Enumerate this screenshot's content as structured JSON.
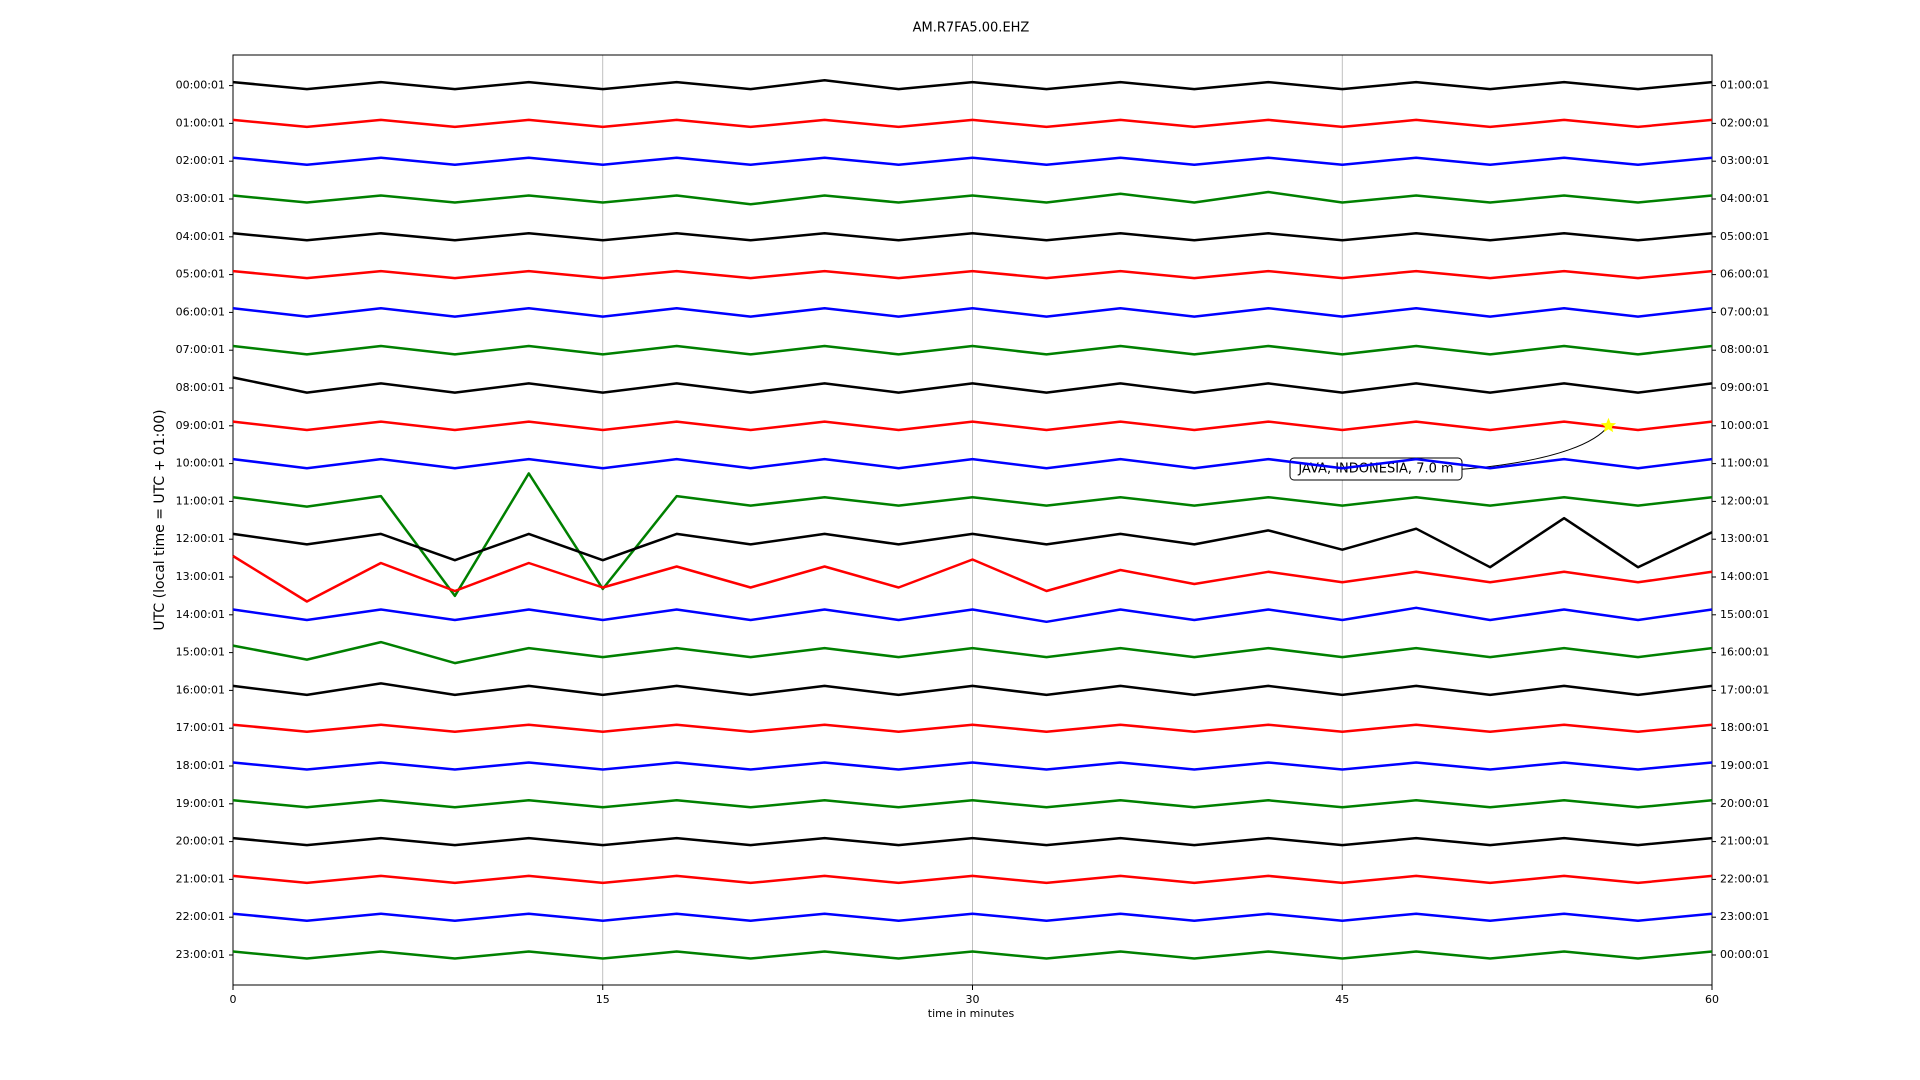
{
  "chart_data": {
    "type": "helicorder",
    "title": "AM.R7FA5.00.EHZ",
    "x_label": "time in minutes",
    "y_label": "UTC (local time = UTC + 01:00)",
    "xlim": [
      0,
      60
    ],
    "xticks": [
      0,
      15,
      30,
      45,
      60
    ],
    "grid": true,
    "x": [
      0,
      3,
      6,
      9,
      12,
      15,
      18,
      21,
      24,
      27,
      30,
      33,
      36,
      39,
      42,
      45,
      48,
      51,
      54,
      57,
      60
    ],
    "series": [
      {
        "name": "00:00:01",
        "right_label": "01:00:01",
        "color": "#000000",
        "values": [
          1,
          1,
          1,
          1,
          1,
          1,
          1,
          1,
          1.5,
          1,
          1,
          1,
          1,
          1,
          1,
          1,
          1,
          1,
          1,
          1,
          1
        ]
      },
      {
        "name": "01:00:01",
        "right_label": "02:00:01",
        "color": "#ff0000",
        "values": [
          1,
          1,
          1,
          1,
          1,
          1,
          1,
          1,
          1,
          1,
          1,
          1,
          1,
          1,
          1,
          1,
          1,
          1,
          1,
          1,
          1
        ]
      },
      {
        "name": "02:00:01",
        "right_label": "03:00:01",
        "color": "#0000ff",
        "values": [
          1,
          1,
          1,
          1,
          1,
          1,
          1,
          1,
          1,
          1,
          1,
          1,
          1,
          1,
          1,
          1,
          1,
          1,
          1,
          1,
          1
        ]
      },
      {
        "name": "03:00:01",
        "right_label": "04:00:01",
        "color": "#008000",
        "values": [
          1,
          1,
          1,
          1,
          1,
          1,
          1,
          1.5,
          1,
          1,
          1,
          1,
          1.5,
          1,
          2,
          1,
          1,
          1,
          1,
          1,
          1
        ]
      },
      {
        "name": "04:00:01",
        "right_label": "05:00:01",
        "color": "#000000",
        "values": [
          1,
          1,
          1,
          1,
          1,
          1,
          1,
          1,
          1,
          1,
          1,
          1,
          1,
          1,
          1,
          1,
          1,
          1,
          1,
          1,
          1
        ]
      },
      {
        "name": "05:00:01",
        "right_label": "06:00:01",
        "color": "#ff0000",
        "values": [
          1,
          1,
          1,
          1,
          1,
          1,
          1,
          1,
          1,
          1,
          1,
          1,
          1,
          1,
          1,
          1,
          1,
          1,
          1,
          1,
          1
        ]
      },
      {
        "name": "06:00:01",
        "right_label": "07:00:01",
        "color": "#0000ff",
        "values": [
          1.2,
          1.2,
          1.2,
          1.2,
          1.2,
          1.2,
          1.2,
          1.2,
          1.2,
          1.2,
          1.2,
          1.2,
          1.2,
          1.2,
          1.2,
          1.2,
          1.2,
          1.2,
          1.2,
          1.2,
          1.2
        ]
      },
      {
        "name": "07:00:01",
        "right_label": "08:00:01",
        "color": "#008000",
        "values": [
          1.2,
          1.2,
          1.2,
          1.2,
          1.2,
          1.2,
          1.2,
          1.2,
          1.2,
          1.2,
          1.2,
          1.2,
          1.2,
          1.2,
          1.2,
          1.2,
          1.2,
          1.2,
          1.2,
          1.2,
          1.2
        ]
      },
      {
        "name": "08:00:01",
        "right_label": "09:00:01",
        "color": "#000000",
        "values": [
          3,
          1.3,
          1.3,
          1.3,
          1.3,
          1.3,
          1.3,
          1.3,
          1.3,
          1.3,
          1.3,
          1.3,
          1.3,
          1.3,
          1.3,
          1.3,
          1.3,
          1.3,
          1.3,
          1.3,
          1.3
        ]
      },
      {
        "name": "09:00:01",
        "right_label": "10:00:01",
        "color": "#ff0000",
        "values": [
          1.2,
          1.2,
          1.2,
          1.2,
          1.2,
          1.2,
          1.2,
          1.2,
          1.2,
          1.2,
          1.2,
          1.2,
          1.2,
          1.2,
          1.2,
          1.2,
          1.2,
          1.2,
          1.2,
          1.2,
          1.2
        ],
        "event": {
          "label": "JAVA, INDONESIA, 7.0 m",
          "minute": 55.8
        }
      },
      {
        "name": "10:00:01",
        "right_label": "11:00:01",
        "color": "#0000ff",
        "values": [
          1.3,
          1.3,
          1.3,
          1.3,
          1.3,
          1.3,
          1.3,
          1.3,
          1.3,
          1.3,
          1.3,
          1.3,
          1.3,
          1.3,
          1.3,
          1.3,
          1.3,
          1.3,
          1.3,
          1.3,
          1.3
        ]
      },
      {
        "name": "11:00:01",
        "right_label": "12:00:01",
        "color": "#008000",
        "values": [
          1.2,
          1.5,
          1.5,
          27,
          8,
          25,
          1.5,
          1.2,
          1.2,
          1.2,
          1.2,
          1.2,
          1.2,
          1.2,
          1.2,
          1.2,
          1.2,
          1.2,
          1.2,
          1.2,
          1.2
        ]
      },
      {
        "name": "12:00:01",
        "right_label": "13:00:01",
        "color": "#000000",
        "values": [
          1.5,
          1.5,
          1.5,
          6,
          1.5,
          6,
          1.5,
          1.5,
          1.5,
          1.5,
          1.5,
          1.5,
          1.5,
          1.5,
          2.5,
          3,
          3,
          8,
          6,
          8,
          2
        ]
      },
      {
        "name": "13:00:01",
        "right_label": "14:00:01",
        "color": "#ff0000",
        "values": [
          6,
          7,
          4,
          4,
          4,
          3,
          3,
          3,
          3,
          3,
          5,
          4,
          2,
          2,
          1.5,
          1.5,
          1.5,
          1.5,
          1.5,
          1.5,
          1.5
        ]
      },
      {
        "name": "14:00:01",
        "right_label": "15:00:01",
        "color": "#0000ff",
        "values": [
          1.5,
          1.5,
          1.5,
          1.5,
          1.5,
          1.5,
          1.5,
          1.5,
          1.5,
          1.5,
          1.5,
          2,
          1.5,
          1.5,
          1.5,
          1.5,
          2,
          1.5,
          1.5,
          1.5,
          1.5
        ]
      },
      {
        "name": "15:00:01",
        "right_label": "16:00:01",
        "color": "#008000",
        "values": [
          2,
          2,
          3,
          3,
          1.3,
          1.3,
          1.3,
          1.3,
          1.3,
          1.3,
          1.3,
          1.3,
          1.3,
          1.3,
          1.3,
          1.3,
          1.3,
          1.3,
          1.3,
          1.3,
          1.3
        ]
      },
      {
        "name": "16:00:01",
        "right_label": "17:00:01",
        "color": "#000000",
        "values": [
          1.3,
          1.3,
          2,
          1.3,
          1.3,
          1.3,
          1.3,
          1.3,
          1.3,
          1.3,
          1.3,
          1.3,
          1.3,
          1.3,
          1.3,
          1.3,
          1.3,
          1.3,
          1.3,
          1.3,
          1.3
        ]
      },
      {
        "name": "17:00:01",
        "right_label": "18:00:01",
        "color": "#ff0000",
        "values": [
          1,
          1,
          1,
          1,
          1,
          1,
          1,
          1,
          1,
          1,
          1,
          1,
          1,
          1,
          1,
          1,
          1,
          1,
          1,
          1,
          1
        ]
      },
      {
        "name": "18:00:01",
        "right_label": "19:00:01",
        "color": "#0000ff",
        "values": [
          1,
          1,
          1,
          1,
          1,
          1,
          1,
          1,
          1,
          1,
          1,
          1,
          1,
          1,
          1,
          1,
          1,
          1,
          1,
          1,
          1
        ]
      },
      {
        "name": "19:00:01",
        "right_label": "20:00:01",
        "color": "#008000",
        "values": [
          1,
          1,
          1,
          1,
          1,
          1,
          1,
          1,
          1,
          1,
          1,
          1,
          1,
          1,
          1,
          1,
          1,
          1,
          1,
          1,
          1
        ]
      },
      {
        "name": "20:00:01",
        "right_label": "21:00:01",
        "color": "#000000",
        "values": [
          1,
          1,
          1,
          1,
          1,
          1,
          1,
          1,
          1,
          1,
          1,
          1,
          1,
          1,
          1,
          1,
          1,
          1,
          1,
          1,
          1
        ]
      },
      {
        "name": "21:00:01",
        "right_label": "22:00:01",
        "color": "#ff0000",
        "values": [
          1,
          1,
          1,
          1,
          1,
          1,
          1,
          1,
          1,
          1,
          1,
          1,
          1,
          1,
          1,
          1,
          1,
          1,
          1,
          1,
          1
        ]
      },
      {
        "name": "22:00:01",
        "right_label": "23:00:01",
        "color": "#0000ff",
        "values": [
          1,
          1,
          1,
          1,
          1,
          1,
          1,
          1,
          1,
          1,
          1,
          1,
          1,
          1,
          1,
          1,
          1,
          1,
          1,
          1,
          1
        ]
      },
      {
        "name": "23:00:01",
        "right_label": "00:00:01",
        "color": "#008000",
        "values": [
          1,
          1,
          1,
          1,
          1,
          1,
          1,
          1,
          1,
          1,
          1,
          1,
          1,
          1,
          1,
          1,
          1,
          1,
          1,
          1,
          1
        ]
      }
    ]
  }
}
